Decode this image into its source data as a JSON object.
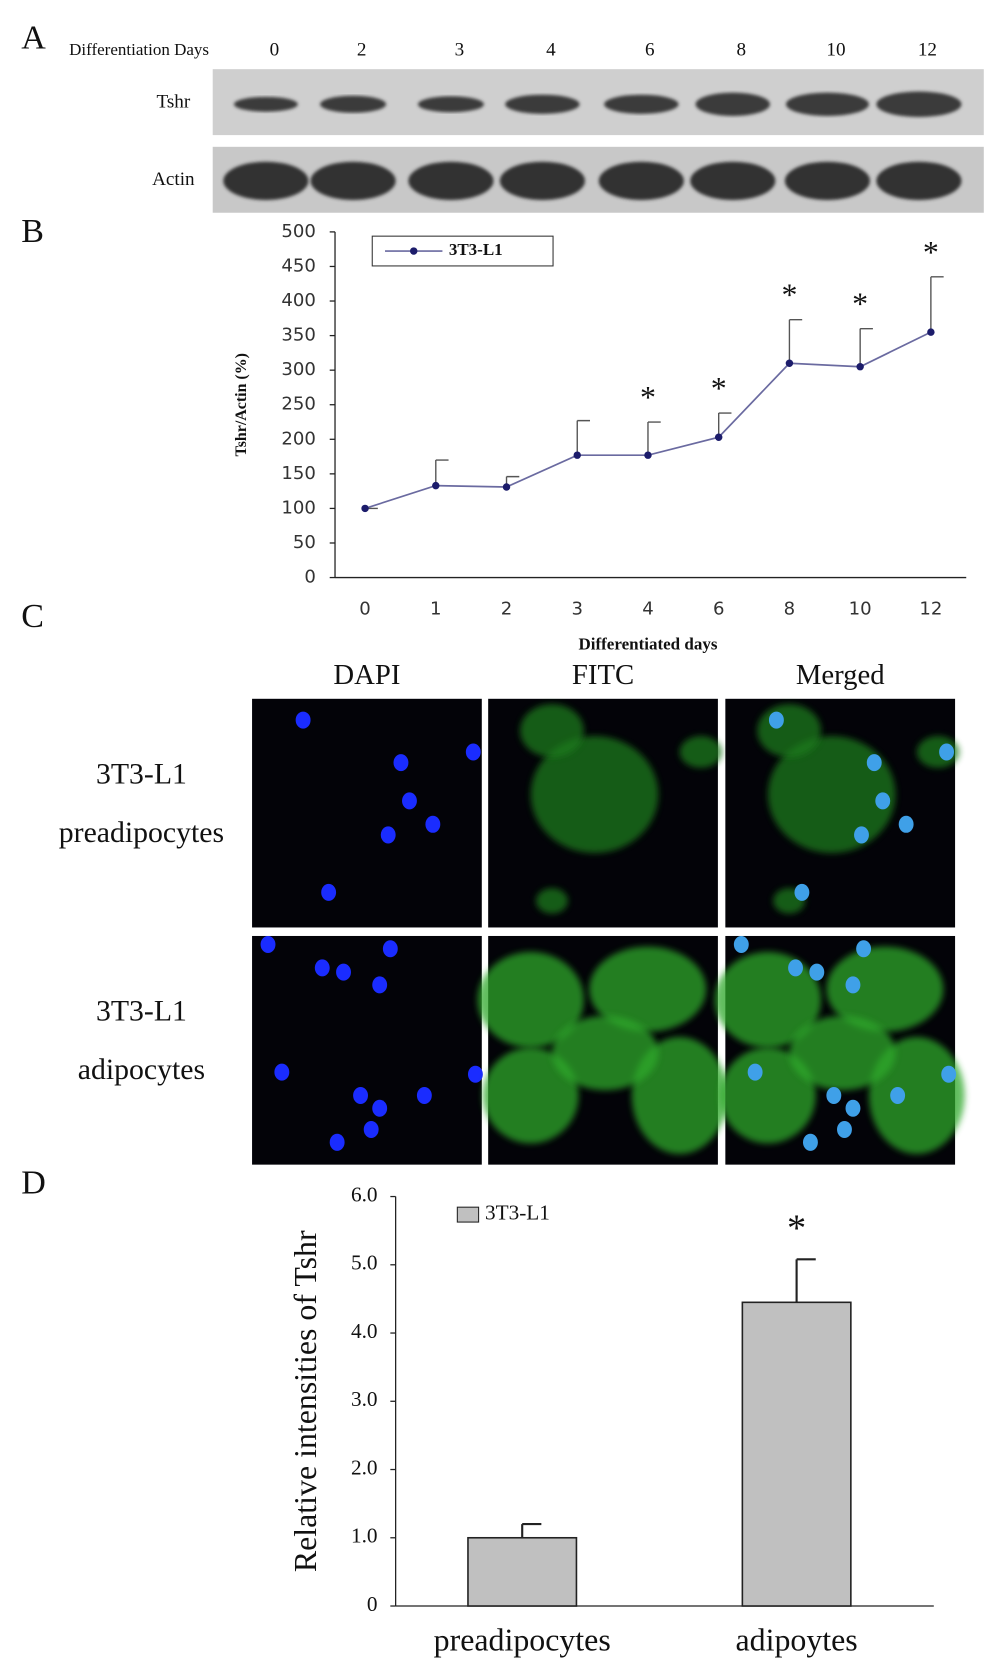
{
  "blot": {
    "panel": "A",
    "header": "Differentiation Days",
    "days": [
      "0",
      "2",
      "3",
      "4",
      "6",
      "8",
      "10",
      "12"
    ],
    "rows": [
      "Tshr",
      "Actin"
    ]
  },
  "microscopy": {
    "panel": "C",
    "channels": [
      "DAPI",
      "FITC",
      "Merged"
    ],
    "rows": [
      [
        "3T3-L1",
        "preadipocytes"
      ],
      [
        "3T3-L1",
        "adipocytes"
      ]
    ]
  },
  "chart_data": [
    {
      "type": "line",
      "panel": "B",
      "xlabel": "Differentiated days",
      "ylabel": "Tshr/Actin (%)",
      "categories": [
        "0",
        "1",
        "2",
        "3",
        "4",
        "6",
        "8",
        "10",
        "12"
      ],
      "series": [
        {
          "name": "3T3-L1",
          "color": "#1c1c6b",
          "values": [
            100,
            133,
            131,
            177,
            177,
            203,
            310,
            305,
            355
          ],
          "errors": [
            0,
            37,
            15,
            50,
            48,
            35,
            63,
            55,
            80
          ]
        }
      ],
      "annotations": [
        {
          "category": "4",
          "label": "*"
        },
        {
          "category": "6",
          "label": "*"
        },
        {
          "category": "8",
          "label": "*"
        },
        {
          "category": "10",
          "label": "*"
        },
        {
          "category": "12",
          "label": "*"
        }
      ],
      "ylim": [
        0,
        500
      ],
      "yticks": [
        0,
        50,
        100,
        150,
        200,
        250,
        300,
        350,
        400,
        450,
        500
      ],
      "grid": false,
      "legend": "top-left"
    },
    {
      "type": "bar",
      "panel": "D",
      "ylabel": "Relative intensities of Tshr",
      "categories": [
        "preadipocytes",
        "adipoytes"
      ],
      "series": [
        {
          "name": "3T3-L1",
          "color": "#c0c0c0",
          "values": [
            1.0,
            4.45
          ],
          "errors": [
            0.2,
            0.63
          ]
        }
      ],
      "annotations": [
        {
          "category": "adipoytes",
          "label": "*"
        }
      ],
      "ylim": [
        0,
        6
      ],
      "yticks": [
        0,
        {
          "value": 1,
          "label": "1.0"
        },
        {
          "value": 2,
          "label": "2.0"
        },
        {
          "value": 3,
          "label": "3.0"
        },
        {
          "value": 4,
          "label": "4.0"
        },
        {
          "value": 5,
          "label": "5.0"
        },
        {
          "value": 6,
          "label": "6.0"
        }
      ],
      "grid": false,
      "legend": "top-left"
    }
  ]
}
